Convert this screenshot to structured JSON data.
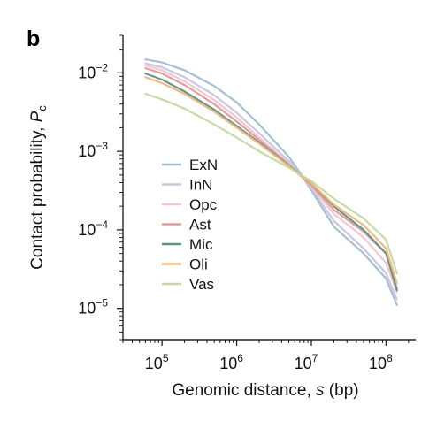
{
  "panel_label": "b",
  "chart_data": {
    "type": "line",
    "xlabel": {
      "main": "Genomic distance, ",
      "var": "s",
      "unit": " (bp)"
    },
    "ylabel": {
      "main": "Contact probability, ",
      "var": "P",
      "sub": "c"
    },
    "x_scale": "log",
    "y_scale": "log",
    "xlim": [
      30000,
      250000000
    ],
    "ylim": [
      4e-06,
      0.03
    ],
    "x_ticks": [
      {
        "value": 100000,
        "base": "10",
        "exp": "5"
      },
      {
        "value": 1000000,
        "base": "10",
        "exp": "6"
      },
      {
        "value": 10000000,
        "base": "10",
        "exp": "7"
      },
      {
        "value": 100000000,
        "base": "10",
        "exp": "8"
      }
    ],
    "y_ticks": [
      {
        "value": 0.01,
        "base": "10",
        "exp": "−2"
      },
      {
        "value": 0.001,
        "base": "10",
        "exp": "−3"
      },
      {
        "value": 0.0001,
        "base": "10",
        "exp": "−4"
      },
      {
        "value": 1e-05,
        "base": "10",
        "exp": "−5"
      }
    ],
    "grid": false,
    "legend_position": "center-left",
    "series": [
      {
        "name": "ExN",
        "color": "#9fbdd0",
        "x": [
          60000,
          100000,
          200000,
          500000,
          1000000,
          2000000,
          5000000,
          7000000,
          10000000,
          20000000,
          50000000,
          100000000,
          140000000
        ],
        "y": [
          0.0148,
          0.0136,
          0.0108,
          0.0068,
          0.0042,
          0.0022,
          0.00085,
          0.00054,
          0.00032,
          0.00011,
          5e-05,
          2.4e-05,
          1.1e-05
        ]
      },
      {
        "name": "InN",
        "color": "#c8c3df",
        "x": [
          60000,
          100000,
          200000,
          500000,
          1000000,
          2000000,
          5000000,
          7000000,
          10000000,
          20000000,
          50000000,
          100000000,
          140000000
        ],
        "y": [
          0.0132,
          0.0118,
          0.0088,
          0.0052,
          0.0031,
          0.0017,
          0.00075,
          0.00052,
          0.00034,
          0.00013,
          5.8e-05,
          2.8e-05,
          1.3e-05
        ]
      },
      {
        "name": "Opc",
        "color": "#f2c4cc",
        "x": [
          60000,
          100000,
          200000,
          500000,
          1000000,
          2000000,
          5000000,
          7000000,
          10000000,
          20000000,
          50000000,
          100000000,
          140000000
        ],
        "y": [
          0.0125,
          0.0108,
          0.0078,
          0.0045,
          0.0027,
          0.0015,
          0.0007,
          0.00051,
          0.00036,
          0.00016,
          8e-05,
          3.8e-05,
          1.6e-05
        ]
      },
      {
        "name": "Ast",
        "color": "#e29a99",
        "x": [
          60000,
          100000,
          200000,
          500000,
          1000000,
          2000000,
          5000000,
          7000000,
          10000000,
          20000000,
          50000000,
          100000000,
          140000000
        ],
        "y": [
          0.0115,
          0.0098,
          0.007,
          0.004,
          0.0024,
          0.0014,
          0.00068,
          0.0005,
          0.00037,
          0.00018,
          9.5e-05,
          5e-05,
          1.8e-05
        ]
      },
      {
        "name": "Mic",
        "color": "#5f9487",
        "x": [
          60000,
          100000,
          200000,
          500000,
          1000000,
          2000000,
          5000000,
          7000000,
          10000000,
          20000000,
          50000000,
          100000000,
          140000000
        ],
        "y": [
          0.0098,
          0.0082,
          0.0058,
          0.0034,
          0.0021,
          0.0013,
          0.00066,
          0.00051,
          0.00039,
          0.0002,
          0.0001,
          5e-05,
          1.7e-05
        ]
      },
      {
        "name": "Oli",
        "color": "#efb779",
        "x": [
          60000,
          100000,
          200000,
          500000,
          1000000,
          2000000,
          5000000,
          7000000,
          10000000,
          20000000,
          50000000,
          100000000,
          140000000
        ],
        "y": [
          0.0088,
          0.0074,
          0.0054,
          0.0032,
          0.002,
          0.00125,
          0.00065,
          0.0005,
          0.00039,
          0.00021,
          0.000115,
          5.8e-05,
          2.1e-05
        ]
      },
      {
        "name": "Vas",
        "color": "#c3d9a3",
        "x": [
          60000,
          100000,
          200000,
          500000,
          1000000,
          2000000,
          5000000,
          7000000,
          10000000,
          20000000,
          50000000,
          100000000,
          140000000
        ],
        "y": [
          0.0054,
          0.0046,
          0.0035,
          0.0022,
          0.0015,
          0.001,
          0.00062,
          0.00051,
          0.00042,
          0.00025,
          0.00014,
          7.5e-05,
          2.8e-05
        ]
      }
    ]
  }
}
